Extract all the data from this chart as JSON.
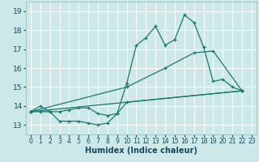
{
  "xlabel": "Humidex (Indice chaleur)",
  "bg_color": "#cce8e8",
  "grid_color": "#ffffff",
  "line_color": "#1a7a6a",
  "xlim": [
    -0.5,
    23.5
  ],
  "ylim": [
    12.5,
    19.5
  ],
  "xticks": [
    0,
    1,
    2,
    3,
    4,
    5,
    6,
    7,
    8,
    9,
    10,
    11,
    12,
    13,
    14,
    15,
    16,
    17,
    18,
    19,
    20,
    21,
    22,
    23
  ],
  "yticks": [
    13,
    14,
    15,
    16,
    17,
    18,
    19
  ],
  "lines": [
    {
      "x": [
        0,
        1,
        2,
        3,
        4,
        5,
        6,
        7,
        8,
        9,
        10,
        11,
        12,
        13,
        14,
        15,
        16,
        17,
        18,
        19,
        20,
        21,
        22
      ],
      "y": [
        13.7,
        14.0,
        13.7,
        13.2,
        13.2,
        13.2,
        13.1,
        13.0,
        13.1,
        13.6,
        15.2,
        17.2,
        17.6,
        18.2,
        17.2,
        17.5,
        18.8,
        18.4,
        17.1,
        15.3,
        15.4,
        15.0,
        14.8
      ]
    },
    {
      "x": [
        0,
        1,
        2,
        3,
        4,
        5,
        6,
        7,
        8,
        9,
        10,
        22
      ],
      "y": [
        13.7,
        13.7,
        13.7,
        13.7,
        13.8,
        13.9,
        13.9,
        13.6,
        13.5,
        13.6,
        14.2,
        14.8
      ]
    },
    {
      "x": [
        0,
        10,
        14,
        17,
        19,
        22
      ],
      "y": [
        13.7,
        15.0,
        16.0,
        16.8,
        16.9,
        14.8
      ]
    },
    {
      "x": [
        0,
        22
      ],
      "y": [
        13.7,
        14.8
      ]
    }
  ]
}
